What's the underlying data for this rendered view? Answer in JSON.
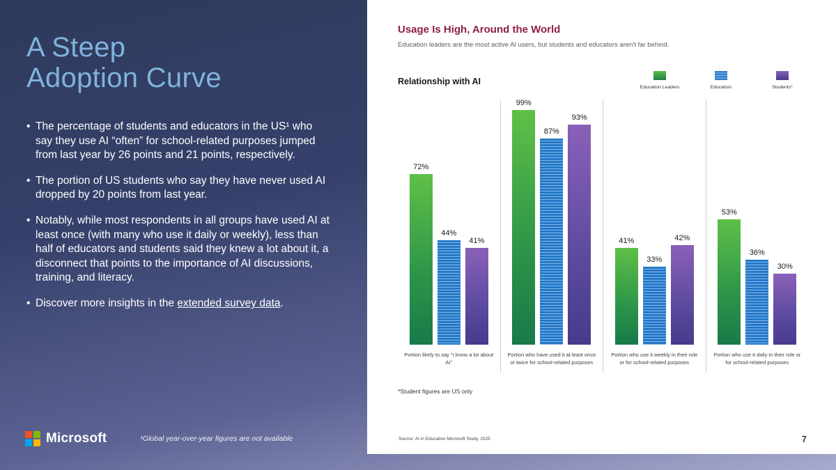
{
  "left_panel": {
    "title_line1": "A Steep",
    "title_line2": "Adoption Curve",
    "bullets": [
      "The percentage of students and educators in the US¹ who say they use AI “often” for school-related purposes jumped from last year by 26 points and 21 points, respectively.",
      "The portion of US students who say they have never used AI dropped by 20 points from last year.",
      "Notably, while most respondents in all groups have used AI at least once (with many who use it daily or weekly), less than half of educators and students said they knew a lot about it, a disconnect that points to the importance of AI discussions, training, and literacy."
    ],
    "last_bullet_prefix": "Discover more insights in the ",
    "last_bullet_link": "extended survey data",
    "last_bullet_suffix": ".",
    "logo_text": "Microsoft",
    "footnote": "¹Global year-over-year figures are not available"
  },
  "right_panel": {
    "title": "Usage Is High, Around the World",
    "subtitle": "Education leaders are the most active AI users, but students and educators aren't far behind.",
    "chart_label": "Relationship with AI",
    "footnote": "*Student figures are US only",
    "source": "Source: AI in Education Microsoft Study, 2025",
    "page_number": "7"
  },
  "chart_data": {
    "type": "bar",
    "title": "Relationship with AI",
    "categories": [
      "Portion likely to say “I know a lot about AI”",
      "Portion who have used it at least once or twice for school-related purposes",
      "Portion who use it weekly in their role or for school-related purposes",
      "Portion who use it daily in their role or for school-related purposes"
    ],
    "series": [
      {
        "name": "Education Leaders",
        "values": [
          72,
          99,
          41,
          53
        ],
        "color": "#3f9d47",
        "style": "green-gradient"
      },
      {
        "name": "Educators",
        "values": [
          44,
          87,
          33,
          36
        ],
        "color": "#2478c8",
        "style": "horizontal-stripes"
      },
      {
        "name": "Students*",
        "values": [
          41,
          93,
          42,
          30
        ],
        "color": "#6a4fa3",
        "style": "purple-gradient"
      }
    ],
    "value_format": "percent",
    "ylim": [
      0,
      100
    ],
    "grid": false,
    "legend_position": "top-right"
  }
}
